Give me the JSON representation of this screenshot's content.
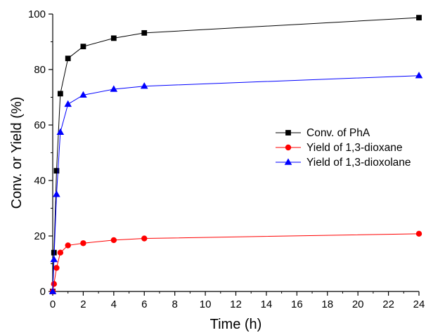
{
  "chart_data": {
    "type": "line",
    "xlabel": "Time (h)",
    "ylabel": "Conv. or Yield (%)",
    "xlim": [
      0,
      24
    ],
    "ylim": [
      0,
      100
    ],
    "xticks": [
      0,
      2,
      4,
      6,
      8,
      10,
      12,
      14,
      16,
      18,
      20,
      22,
      24
    ],
    "yticks": [
      0,
      20,
      40,
      60,
      80,
      100
    ],
    "grid": false,
    "legend_position": "right",
    "series": [
      {
        "name": "Conv. of PhA",
        "color": "#000000",
        "marker": "square",
        "x": [
          0,
          0.083,
          0.25,
          0.5,
          1,
          2,
          4,
          6,
          24
        ],
        "y": [
          0,
          14,
          43.5,
          71.3,
          84,
          88.3,
          91.3,
          93.2,
          98.7
        ]
      },
      {
        "name": "Yield of 1,3-dioxane",
        "color": "#ff0000",
        "marker": "circle",
        "x": [
          0,
          0.083,
          0.25,
          0.5,
          1,
          2,
          4,
          6,
          24
        ],
        "y": [
          0,
          2.7,
          8.5,
          14,
          16.6,
          17.4,
          18.5,
          19.1,
          20.8
        ]
      },
      {
        "name": "Yield of 1,3-dioxolane",
        "color": "#0000ff",
        "marker": "triangle",
        "x": [
          0,
          0.083,
          0.25,
          0.5,
          1,
          2,
          4,
          6,
          24
        ],
        "y": [
          0,
          11.5,
          35,
          57.4,
          67.5,
          70.8,
          72.9,
          74,
          77.8
        ]
      }
    ]
  }
}
